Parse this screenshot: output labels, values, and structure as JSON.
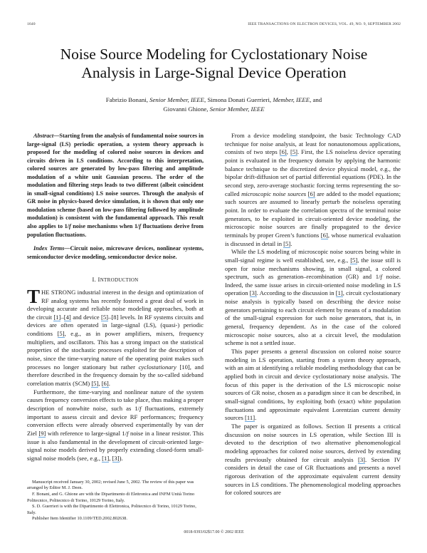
{
  "header": {
    "page_number": "1640",
    "journal": "IEEE TRANSACTIONS ON ELECTRON DEVICES, VOL. 49, NO. 9, SEPTEMBER 2002"
  },
  "title": {
    "line1": "Noise Source Modeling for Cyclostationary Noise",
    "line2": "Analysis in Large-Signal Device Operation"
  },
  "authors": [
    [
      {
        "t": "Fabrizio Bonani, "
      },
      {
        "t": "Senior Member, IEEE",
        "s": "i"
      },
      {
        "t": ", Simona Donati Guerrieri, "
      },
      {
        "t": "Member, IEEE",
        "s": "i"
      },
      {
        "t": ", and"
      }
    ],
    [
      {
        "t": "Giovanni Ghione, "
      },
      {
        "t": "Senior Member, IEEE",
        "s": "i"
      }
    ]
  ],
  "abstract": [
    [
      {
        "t": "Abstract",
        "s": "i"
      },
      {
        "t": "—Starting from the analysis of fundamental noise sources in large-signal (LS) periodic operation, a system theory approach is proposed for the modeling of colored noise sources in devices and circuits driven in LS conditions. According to this interpretation, colored sources are generated by low-pass filtering and amplitude modulation of a white unit Gaussian process. The order of the modulation and filtering steps leads to two different (albeit coincident in small-signal conditions) LS noise sources. Through the analysis of GR noise in physics-based device simulation, it is shown that only one modulation scheme (based on low-pass filtering followed by amplitude modulation) is consistent with the fundamental approach. This result also applies to 1/"
      },
      {
        "t": "f",
        "s": "i"
      },
      {
        "t": " noise mechanisms when 1/"
      },
      {
        "t": "f",
        "s": "i"
      },
      {
        "t": " fluctuations derive from population fluctuations."
      }
    ]
  ],
  "index_terms": [
    [
      {
        "t": "Index Terms",
        "s": "i"
      },
      {
        "t": "—Circuit noise, microwave devices, nonlinear systems, semiconductor device modeling, semiconductor device noise."
      }
    ]
  ],
  "intro": {
    "heading_numeral": "I. I",
    "heading_rest": "NTRODUCTION",
    "drop_cap": "T",
    "paragraphs": [
      [
        {
          "t": "HE STRONG industrial interest in the design and optimization of RF analog systems has recently fostered a great deal of work in developing accurate and reliable noise modeling approaches, both at the circuit "
        },
        {
          "t": "[1]",
          "s": "c"
        },
        {
          "t": "–"
        },
        {
          "t": "[4]",
          "s": "c"
        },
        {
          "t": " and device "
        },
        {
          "t": "[5]",
          "s": "c"
        },
        {
          "t": "–[8] levels. In RF systems circuits and devices are often operated in large-signal (LS), (quasi-) periodic conditions "
        },
        {
          "t": "[5]",
          "s": "c"
        },
        {
          "t": ", e.g., as in power amplifiers, mixers, frequency multipliers, and oscillators. This has a strong impact on the statistical properties of the stochastic processes exploited for the description of noise, since the time-varying nature of the operating point makes such processes no longer stationary but rather "
        },
        {
          "t": "cyclostationary",
          "s": "i"
        },
        {
          "t": " [10], and therefore described in the frequency domain by the so-called sideband correlation matrix (SCM) "
        },
        {
          "t": "[5]",
          "s": "c"
        },
        {
          "t": ", "
        },
        {
          "t": "[6]",
          "s": "c"
        },
        {
          "t": "."
        }
      ],
      [
        {
          "t": "Furthermore, the time-varying and nonlinear nature of the system causes frequency conversion effects to take place, thus making a proper description of nonwhite noise, such as 1/"
        },
        {
          "t": "f",
          "s": "i"
        },
        {
          "t": " fluctuations, extremely important to assess circuit and device RF performances; frequency conversion effects were already observed experimentally by van der Ziel "
        },
        {
          "t": "[9]",
          "s": "c"
        },
        {
          "t": " with reference to large-signal 1/"
        },
        {
          "t": "f",
          "s": "i"
        },
        {
          "t": " noise in a linear resistor. This issue is also fundamental in the development of circuit-oriented large-signal noise models derived by properly extending closed-form small-signal noise models (see, e.g., "
        },
        {
          "t": "[1]",
          "s": "c"
        },
        {
          "t": ", "
        },
        {
          "t": "[3]",
          "s": "c"
        },
        {
          "t": ")."
        }
      ]
    ]
  },
  "footnotes": [
    [
      {
        "t": "Manuscript received January 30, 2002; revised June 5, 2002. The review of this paper was arranged by Editor M. J. Deen."
      }
    ],
    [
      {
        "t": "F. Bonani, and G. Ghione are with the Dipartimento di Elettronica and INFM Unità Torino Politecnico, Politecnico di Torino, 10129 Torino, Italy."
      }
    ],
    [
      {
        "t": "S. D. Guerrieri is with the Dipartimento di Elettronica, Politecnico di Torino, 10129 Torino, Italy."
      }
    ],
    [
      {
        "t": "Publisher Item Identifier 10.1109/TED.2002.802638."
      }
    ]
  ],
  "right_column": [
    [
      {
        "t": "From a device modeling standpoint, the basic Technology CAD technique for noise analysis, at least for nonautonomous applications, consists of two steps "
      },
      {
        "t": "[6]",
        "s": "c"
      },
      {
        "t": ", "
      },
      {
        "t": "[5]",
        "s": "c"
      },
      {
        "t": ". First, the LS noiseless device operating point is evaluated in the frequency domain by applying the harmonic balance technique to the discretized device physical model, e.g., the bipolar drift-diffusion set of partial differential equations (PDE). In the second step, zero-average stochastic forcing terms representing the so-called "
      },
      {
        "t": "microscopic noise sources",
        "s": "i"
      },
      {
        "t": " "
      },
      {
        "t": "[6]",
        "s": "c"
      },
      {
        "t": " are added to the model equations; such sources are assumed to linearly perturb the noiseless operating point. In order to evaluate the correlation spectra of the terminal noise generators, to be exploited in circuit-oriented device modeling, the microscopic noise sources are finally propagated to the device terminals by proper Green’s functions "
      },
      {
        "t": "[6]",
        "s": "c"
      },
      {
        "t": ", whose numerical evaluation is discussed in detail in "
      },
      {
        "t": "[5]",
        "s": "c"
      },
      {
        "t": "."
      }
    ],
    [
      {
        "t": "While the LS modeling of microscopic noise sources being white in small-signal regime is well established, see, e.g., "
      },
      {
        "t": "[5]",
        "s": "c"
      },
      {
        "t": ", the issue still is open for noise mechanisms showing, in small signal, a colored spectrum, such as generation–recombination (GR) and 1/"
      },
      {
        "t": "f",
        "s": "i"
      },
      {
        "t": " noise. Indeed, the same issue arises in circuit-oriented noise modeling in LS operation "
      },
      {
        "t": "[3]",
        "s": "c"
      },
      {
        "t": ". According to the discussion in "
      },
      {
        "t": "[1]",
        "s": "c"
      },
      {
        "t": ", circuit cyclostationary noise analysis is typically based on describing the device noise generators pertaining to each circuit element by means of a modulation of the small-signal expression for such noise generators, that is, in general, frequency dependent. As in the case of the colored microscopic noise sources, also at a circuit level, the modulation scheme is not a settled issue."
      }
    ],
    [
      {
        "t": "This paper presents a general discussion on colored noise source modeling in LS operation, starting from a system theory approach, with an aim at identifying a reliable modeling methodology that can be applied both in circuit and device cyclostationary noise analysis. The focus of this paper is the derivation of the LS microscopic noise sources of GR noise, chosen as a paradigm since it can be described, in small-signal conditions, by exploiting both (exact) white population fluctuations and approximate equivalent Lorentzian current density sources "
      },
      {
        "t": "[11]",
        "s": "c"
      },
      {
        "t": "."
      }
    ],
    [
      {
        "t": "The paper is organized as follows. Section II presents a critical discussion on noise sources in LS operation, while Section III is devoted to the description of two alternative phenomenological modeling approaches for colored noise sources, derived by extending results previously obtained for circuit analysis "
      },
      {
        "t": "[3]",
        "s": "c"
      },
      {
        "t": ". Section IV considers in detail the case of GR fluctuations and presents a novel rigorous derivation of the approximate equivalent current density sources in LS conditions. The phenomenological modeling approaches for colored sources are"
      }
    ]
  ],
  "footer": "0018-9393/02$17.00 © 2002 IEEE",
  "colors": {
    "text": "#1a1a1a",
    "citation_underline": "#6aa8e0"
  }
}
